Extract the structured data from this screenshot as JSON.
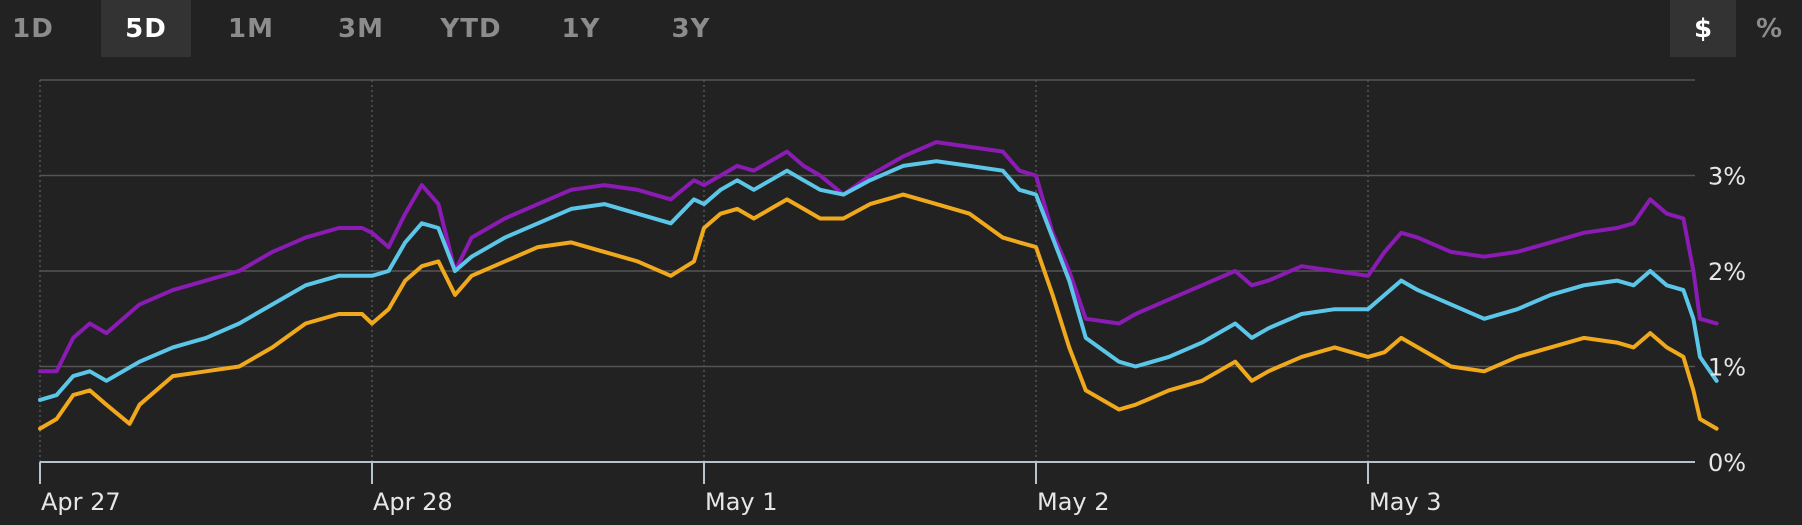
{
  "tabs": [
    {
      "label": "1D",
      "active": false
    },
    {
      "label": "5D",
      "active": true
    },
    {
      "label": "1M",
      "active": false
    },
    {
      "label": "3M",
      "active": false
    },
    {
      "label": "YTD",
      "active": false
    },
    {
      "label": "1Y",
      "active": false
    },
    {
      "label": "3Y",
      "active": false
    }
  ],
  "unit_toggle": [
    {
      "label": "$",
      "active": true
    },
    {
      "label": "%",
      "active": false
    }
  ],
  "colors": {
    "background": "#222222",
    "grid": "#555555",
    "axis": "#b5c3cc",
    "series_purple": "#8a1bb3",
    "series_blue": "#5bc6e8",
    "series_orange": "#f0a81c"
  },
  "chart_data": {
    "type": "line",
    "xlabel": "",
    "ylabel": "",
    "y_axis_side": "right",
    "grid": true,
    "legend": "none",
    "ylim": [
      0,
      4
    ],
    "yticks": [
      {
        "value": 0,
        "label": "0%"
      },
      {
        "value": 1,
        "label": "1%"
      },
      {
        "value": 2,
        "label": "2%"
      },
      {
        "value": 3,
        "label": "3%"
      }
    ],
    "xlim": [
      0,
      5
    ],
    "xticks": [
      {
        "value": 0,
        "label": "Apr 27"
      },
      {
        "value": 1,
        "label": "Apr 28"
      },
      {
        "value": 2,
        "label": "May 1"
      },
      {
        "value": 3,
        "label": "May 2"
      },
      {
        "value": 4,
        "label": "May 3"
      }
    ],
    "series": [
      {
        "color_key": "series_purple",
        "points": [
          [
            0,
            0.95
          ],
          [
            0.05,
            0.95
          ],
          [
            0.1,
            1.3
          ],
          [
            0.15,
            1.45
          ],
          [
            0.2,
            1.35
          ],
          [
            0.3,
            1.65
          ],
          [
            0.4,
            1.8
          ],
          [
            0.5,
            1.9
          ],
          [
            0.6,
            2.0
          ],
          [
            0.7,
            2.2
          ],
          [
            0.8,
            2.35
          ],
          [
            0.9,
            2.45
          ],
          [
            0.97,
            2.45
          ],
          [
            1.0,
            2.4
          ],
          [
            1.05,
            2.25
          ],
          [
            1.1,
            2.6
          ],
          [
            1.15,
            2.9
          ],
          [
            1.2,
            2.7
          ],
          [
            1.25,
            2.0
          ],
          [
            1.3,
            2.35
          ],
          [
            1.4,
            2.55
          ],
          [
            1.5,
            2.7
          ],
          [
            1.6,
            2.85
          ],
          [
            1.7,
            2.9
          ],
          [
            1.8,
            2.85
          ],
          [
            1.9,
            2.75
          ],
          [
            1.97,
            2.95
          ],
          [
            2.0,
            2.9
          ],
          [
            2.05,
            3.0
          ],
          [
            2.1,
            3.1
          ],
          [
            2.15,
            3.05
          ],
          [
            2.2,
            3.15
          ],
          [
            2.25,
            3.25
          ],
          [
            2.3,
            3.1
          ],
          [
            2.35,
            3.0
          ],
          [
            2.42,
            2.8
          ],
          [
            2.5,
            3.0
          ],
          [
            2.6,
            3.2
          ],
          [
            2.7,
            3.35
          ],
          [
            2.8,
            3.3
          ],
          [
            2.9,
            3.25
          ],
          [
            2.95,
            3.05
          ],
          [
            3.0,
            3.0
          ],
          [
            3.05,
            2.4
          ],
          [
            3.1,
            2.0
          ],
          [
            3.15,
            1.5
          ],
          [
            3.25,
            1.45
          ],
          [
            3.3,
            1.55
          ],
          [
            3.4,
            1.7
          ],
          [
            3.5,
            1.85
          ],
          [
            3.6,
            2.0
          ],
          [
            3.65,
            1.85
          ],
          [
            3.7,
            1.9
          ],
          [
            3.8,
            2.05
          ],
          [
            3.9,
            2.0
          ],
          [
            4.0,
            1.95
          ],
          [
            4.05,
            2.2
          ],
          [
            4.1,
            2.4
          ],
          [
            4.15,
            2.35
          ],
          [
            4.25,
            2.2
          ],
          [
            4.35,
            2.15
          ],
          [
            4.45,
            2.2
          ],
          [
            4.55,
            2.3
          ],
          [
            4.65,
            2.4
          ],
          [
            4.75,
            2.45
          ],
          [
            4.8,
            2.5
          ],
          [
            4.85,
            2.75
          ],
          [
            4.9,
            2.6
          ],
          [
            4.95,
            2.55
          ],
          [
            4.98,
            2.0
          ],
          [
            5.0,
            1.5
          ],
          [
            5.05,
            1.45
          ]
        ]
      },
      {
        "color_key": "series_blue",
        "points": [
          [
            0,
            0.65
          ],
          [
            0.05,
            0.7
          ],
          [
            0.1,
            0.9
          ],
          [
            0.15,
            0.95
          ],
          [
            0.2,
            0.85
          ],
          [
            0.3,
            1.05
          ],
          [
            0.4,
            1.2
          ],
          [
            0.5,
            1.3
          ],
          [
            0.6,
            1.45
          ],
          [
            0.7,
            1.65
          ],
          [
            0.8,
            1.85
          ],
          [
            0.9,
            1.95
          ],
          [
            0.97,
            1.95
          ],
          [
            1.0,
            1.95
          ],
          [
            1.05,
            2.0
          ],
          [
            1.1,
            2.3
          ],
          [
            1.15,
            2.5
          ],
          [
            1.2,
            2.45
          ],
          [
            1.25,
            2.0
          ],
          [
            1.3,
            2.15
          ],
          [
            1.4,
            2.35
          ],
          [
            1.5,
            2.5
          ],
          [
            1.6,
            2.65
          ],
          [
            1.7,
            2.7
          ],
          [
            1.8,
            2.6
          ],
          [
            1.9,
            2.5
          ],
          [
            1.97,
            2.75
          ],
          [
            2.0,
            2.7
          ],
          [
            2.05,
            2.85
          ],
          [
            2.1,
            2.95
          ],
          [
            2.15,
            2.85
          ],
          [
            2.2,
            2.95
          ],
          [
            2.25,
            3.05
          ],
          [
            2.3,
            2.95
          ],
          [
            2.35,
            2.85
          ],
          [
            2.42,
            2.8
          ],
          [
            2.5,
            2.95
          ],
          [
            2.6,
            3.1
          ],
          [
            2.7,
            3.15
          ],
          [
            2.8,
            3.1
          ],
          [
            2.9,
            3.05
          ],
          [
            2.95,
            2.85
          ],
          [
            3.0,
            2.8
          ],
          [
            3.05,
            2.35
          ],
          [
            3.1,
            1.9
          ],
          [
            3.15,
            1.3
          ],
          [
            3.25,
            1.05
          ],
          [
            3.3,
            1.0
          ],
          [
            3.4,
            1.1
          ],
          [
            3.5,
            1.25
          ],
          [
            3.6,
            1.45
          ],
          [
            3.65,
            1.3
          ],
          [
            3.7,
            1.4
          ],
          [
            3.8,
            1.55
          ],
          [
            3.9,
            1.6
          ],
          [
            4.0,
            1.6
          ],
          [
            4.05,
            1.75
          ],
          [
            4.1,
            1.9
          ],
          [
            4.15,
            1.8
          ],
          [
            4.25,
            1.65
          ],
          [
            4.35,
            1.5
          ],
          [
            4.45,
            1.6
          ],
          [
            4.55,
            1.75
          ],
          [
            4.65,
            1.85
          ],
          [
            4.75,
            1.9
          ],
          [
            4.8,
            1.85
          ],
          [
            4.85,
            2.0
          ],
          [
            4.9,
            1.85
          ],
          [
            4.95,
            1.8
          ],
          [
            4.98,
            1.5
          ],
          [
            5.0,
            1.1
          ],
          [
            5.05,
            0.85
          ]
        ]
      },
      {
        "color_key": "series_orange",
        "points": [
          [
            0,
            0.35
          ],
          [
            0.05,
            0.45
          ],
          [
            0.1,
            0.7
          ],
          [
            0.15,
            0.75
          ],
          [
            0.2,
            0.6
          ],
          [
            0.27,
            0.4
          ],
          [
            0.3,
            0.6
          ],
          [
            0.4,
            0.9
          ],
          [
            0.5,
            0.95
          ],
          [
            0.6,
            1.0
          ],
          [
            0.7,
            1.2
          ],
          [
            0.8,
            1.45
          ],
          [
            0.9,
            1.55
          ],
          [
            0.97,
            1.55
          ],
          [
            1.0,
            1.45
          ],
          [
            1.05,
            1.6
          ],
          [
            1.1,
            1.9
          ],
          [
            1.15,
            2.05
          ],
          [
            1.2,
            2.1
          ],
          [
            1.25,
            1.75
          ],
          [
            1.3,
            1.95
          ],
          [
            1.4,
            2.1
          ],
          [
            1.5,
            2.25
          ],
          [
            1.6,
            2.3
          ],
          [
            1.7,
            2.2
          ],
          [
            1.8,
            2.1
          ],
          [
            1.9,
            1.95
          ],
          [
            1.97,
            2.1
          ],
          [
            2.0,
            2.45
          ],
          [
            2.05,
            2.6
          ],
          [
            2.1,
            2.65
          ],
          [
            2.15,
            2.55
          ],
          [
            2.2,
            2.65
          ],
          [
            2.25,
            2.75
          ],
          [
            2.3,
            2.65
          ],
          [
            2.35,
            2.55
          ],
          [
            2.42,
            2.55
          ],
          [
            2.5,
            2.7
          ],
          [
            2.6,
            2.8
          ],
          [
            2.7,
            2.7
          ],
          [
            2.8,
            2.6
          ],
          [
            2.9,
            2.35
          ],
          [
            2.95,
            2.3
          ],
          [
            3.0,
            2.25
          ],
          [
            3.05,
            1.75
          ],
          [
            3.1,
            1.2
          ],
          [
            3.15,
            0.75
          ],
          [
            3.25,
            0.55
          ],
          [
            3.3,
            0.6
          ],
          [
            3.4,
            0.75
          ],
          [
            3.5,
            0.85
          ],
          [
            3.6,
            1.05
          ],
          [
            3.65,
            0.85
          ],
          [
            3.7,
            0.95
          ],
          [
            3.8,
            1.1
          ],
          [
            3.9,
            1.2
          ],
          [
            4.0,
            1.1
          ],
          [
            4.05,
            1.15
          ],
          [
            4.1,
            1.3
          ],
          [
            4.15,
            1.2
          ],
          [
            4.25,
            1.0
          ],
          [
            4.35,
            0.95
          ],
          [
            4.45,
            1.1
          ],
          [
            4.55,
            1.2
          ],
          [
            4.65,
            1.3
          ],
          [
            4.75,
            1.25
          ],
          [
            4.8,
            1.2
          ],
          [
            4.85,
            1.35
          ],
          [
            4.9,
            1.2
          ],
          [
            4.95,
            1.1
          ],
          [
            4.98,
            0.75
          ],
          [
            5.0,
            0.45
          ],
          [
            5.05,
            0.35
          ]
        ]
      }
    ]
  }
}
